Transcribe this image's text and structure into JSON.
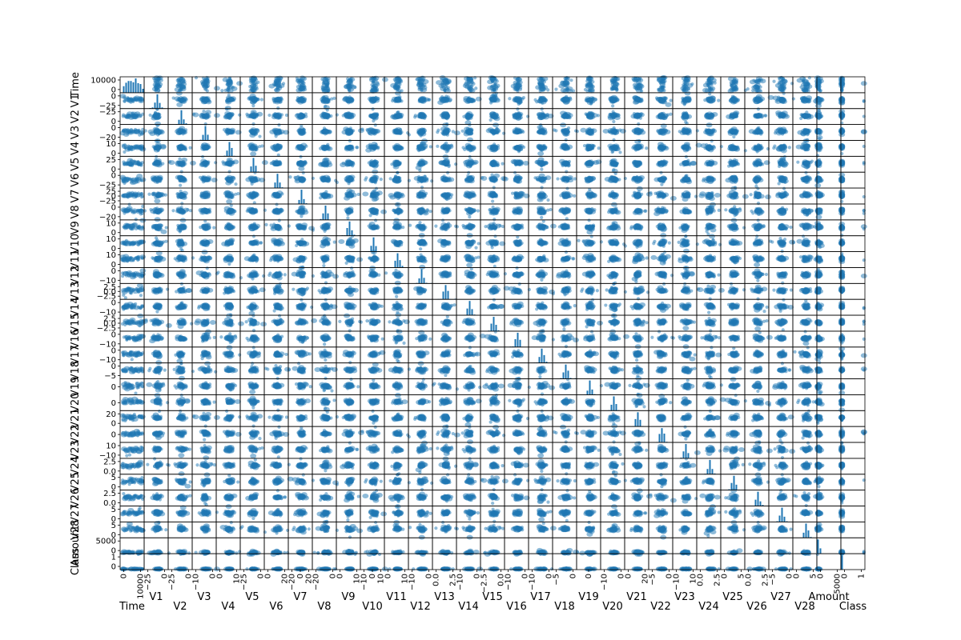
{
  "chart_data": {
    "type": "scatter",
    "subtype": "scatter_matrix",
    "title": "",
    "diagonal": "histogram",
    "grid": false,
    "colors": {
      "point": "#1f77b4",
      "histogram": "#1f77b4",
      "frame": "#000000",
      "background": "#ffffff"
    },
    "point_alpha": 0.5,
    "variables": [
      {
        "name": "Time",
        "range": [
          0,
          12000
        ],
        "yticks": [
          "10000",
          "0"
        ],
        "xticks": [
          "0",
          "10000"
        ]
      },
      {
        "name": "V1",
        "range": [
          -30,
          2
        ],
        "yticks": [
          "0",
          "−25"
        ],
        "xticks": [
          "−25",
          "0"
        ]
      },
      {
        "name": "V2",
        "range": [
          -30,
          12
        ],
        "yticks": [
          "−25",
          "0"
        ],
        "xticks": [
          "−25",
          "0"
        ]
      },
      {
        "name": "V3",
        "range": [
          -20,
          4
        ],
        "yticks": [
          "0",
          "−20"
        ],
        "xticks": [
          "−10",
          "0"
        ]
      },
      {
        "name": "V4",
        "range": [
          -4,
          12
        ],
        "yticks": [
          "10",
          "0"
        ],
        "xticks": [
          "0",
          "10"
        ]
      },
      {
        "name": "V5",
        "range": [
          -30,
          30
        ],
        "yticks": [
          "25",
          "0"
        ],
        "xticks": [
          "−25",
          "0"
        ]
      },
      {
        "name": "V6",
        "range": [
          -20,
          20
        ],
        "yticks": [
          "0",
          "−25"
        ],
        "xticks": [
          "0",
          "20"
        ]
      },
      {
        "name": "V7",
        "range": [
          -40,
          40
        ],
        "yticks": [
          "25",
          "0",
          "−25"
        ],
        "xticks": [
          "−20",
          "0",
          "20"
        ]
      },
      {
        "name": "V8",
        "range": [
          -40,
          20
        ],
        "yticks": [
          "0",
          "−20"
        ],
        "xticks": [
          "−20",
          "0"
        ]
      },
      {
        "name": "V9",
        "range": [
          -12,
          10
        ],
        "yticks": [
          "10",
          "0"
        ],
        "xticks": [
          "0",
          "10"
        ]
      },
      {
        "name": "V10",
        "range": [
          -20,
          12
        ],
        "yticks": [
          "10",
          "0"
        ],
        "xticks": [
          "−10",
          "0",
          "10"
        ]
      },
      {
        "name": "V11",
        "range": [
          -5,
          12
        ],
        "yticks": [
          "10",
          "0"
        ],
        "xticks": [
          "0",
          "10"
        ]
      },
      {
        "name": "V12",
        "range": [
          -18,
          4
        ],
        "yticks": [
          "0",
          "−10"
        ],
        "xticks": [
          "−10",
          "0"
        ]
      },
      {
        "name": "V13",
        "range": [
          -4,
          4
        ],
        "yticks": [
          "2.5",
          "0.0",
          "−2.5"
        ],
        "xticks": [
          "0.0",
          "2.5"
        ]
      },
      {
        "name": "V14",
        "range": [
          -18,
          8
        ],
        "yticks": [
          "0",
          "−10"
        ],
        "xticks": [
          "−10",
          "0"
        ]
      },
      {
        "name": "V15",
        "range": [
          -4,
          4
        ],
        "yticks": [
          "2.5",
          "0.0",
          "−2.5"
        ],
        "xticks": [
          "−2.5",
          "0.0"
        ]
      },
      {
        "name": "V16",
        "range": [
          -14,
          6
        ],
        "yticks": [
          "0",
          "−10"
        ],
        "xticks": [
          "−10",
          "0"
        ]
      },
      {
        "name": "V17",
        "range": [
          -20,
          8
        ],
        "yticks": [
          "0",
          "−10"
        ],
        "xticks": [
          "−10",
          "0"
        ]
      },
      {
        "name": "V18",
        "range": [
          -8,
          4
        ],
        "yticks": [
          "0",
          "−5"
        ],
        "xticks": [
          "−5",
          "0"
        ]
      },
      {
        "name": "V19",
        "range": [
          -5,
          5
        ],
        "yticks": [
          "0"
        ],
        "xticks": [
          "0"
        ]
      },
      {
        "name": "V20",
        "range": [
          -20,
          25
        ],
        "yticks": [
          "0"
        ],
        "xticks": [
          "−10",
          "0"
        ]
      },
      {
        "name": "V21",
        "range": [
          -15,
          25
        ],
        "yticks": [
          "20",
          "0"
        ],
        "xticks": [
          "0",
          "20"
        ]
      },
      {
        "name": "V22",
        "range": [
          -8,
          8
        ],
        "yticks": [
          "0"
        ],
        "xticks": [
          "−5",
          "0"
        ]
      },
      {
        "name": "V23",
        "range": [
          -30,
          15
        ],
        "yticks": [
          "10",
          "−10"
        ],
        "xticks": [
          "−10",
          "10"
        ]
      },
      {
        "name": "V24",
        "range": [
          -3,
          4
        ],
        "yticks": [
          "2.5",
          "0.0"
        ],
        "xticks": [
          "0.0",
          "2.5"
        ]
      },
      {
        "name": "V25",
        "range": [
          -8,
          6
        ],
        "yticks": [
          "5",
          "0"
        ],
        "xticks": [
          "0",
          "5"
        ]
      },
      {
        "name": "V26",
        "range": [
          -2,
          3
        ],
        "yticks": [
          "2.5",
          "0.0"
        ],
        "xticks": [
          "0.0",
          "2.5"
        ]
      },
      {
        "name": "V27",
        "range": [
          -8,
          8
        ],
        "yticks": [
          "5",
          "0"
        ],
        "xticks": [
          "−5",
          "0"
        ]
      },
      {
        "name": "V28",
        "range": [
          -4,
          10
        ],
        "yticks": [
          "5",
          "0"
        ],
        "xticks": [
          "0",
          "5"
        ]
      },
      {
        "name": "Amount",
        "range": [
          0,
          8000
        ],
        "yticks": [
          "5000",
          "0"
        ],
        "xticks": [
          "0",
          "5000"
        ]
      },
      {
        "name": "Class",
        "range": [
          0,
          1
        ],
        "yticks": [
          "1",
          "0"
        ],
        "xticks": [
          "0",
          "1"
        ]
      }
    ]
  }
}
